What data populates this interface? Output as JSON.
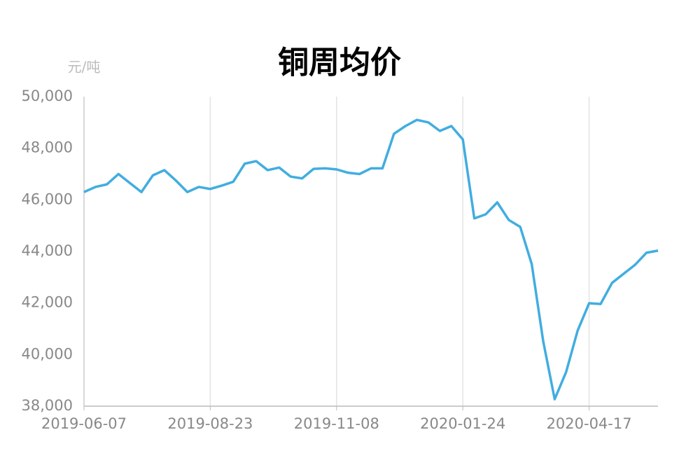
{
  "chart_data": {
    "type": "line",
    "title": "铜周均价",
    "y_unit": "元/吨",
    "categories": [
      "2019-06-07",
      null,
      null,
      null,
      null,
      null,
      null,
      null,
      null,
      null,
      null,
      "2019-08-23",
      null,
      null,
      null,
      null,
      null,
      null,
      null,
      null,
      null,
      null,
      "2019-11-08",
      null,
      null,
      null,
      null,
      null,
      null,
      null,
      null,
      null,
      null,
      "2020-01-24",
      null,
      null,
      null,
      null,
      null,
      null,
      null,
      null,
      null,
      null,
      "2020-04-17",
      null,
      null,
      null,
      null,
      null,
      null
    ],
    "series": [
      {
        "name": "铜周均价",
        "color": "#41ade0",
        "values": [
          46300,
          46500,
          46600,
          47000,
          46650,
          46300,
          46950,
          47150,
          46750,
          46300,
          46500,
          46420,
          46550,
          46700,
          47400,
          47500,
          47150,
          47250,
          46900,
          46830,
          47200,
          47220,
          47180,
          47050,
          47000,
          47220,
          47220,
          48560,
          48860,
          49100,
          49000,
          48670,
          48860,
          48340,
          45280,
          45440,
          45900,
          45220,
          44950,
          43510,
          40520,
          38270,
          39330,
          40930,
          41990,
          41960,
          42780,
          43130,
          43480,
          43950,
          44030
        ]
      }
    ],
    "ylim": [
      38000,
      50000
    ],
    "yticks": [
      {
        "value": 38000,
        "label": "38,000"
      },
      {
        "value": 40000,
        "label": "40,000"
      },
      {
        "value": 42000,
        "label": "42,000"
      },
      {
        "value": 44000,
        "label": "44,000"
      },
      {
        "value": 46000,
        "label": "46,000"
      },
      {
        "value": 48000,
        "label": "48,000"
      },
      {
        "value": 50000,
        "label": "50,000"
      }
    ],
    "grid": true
  }
}
